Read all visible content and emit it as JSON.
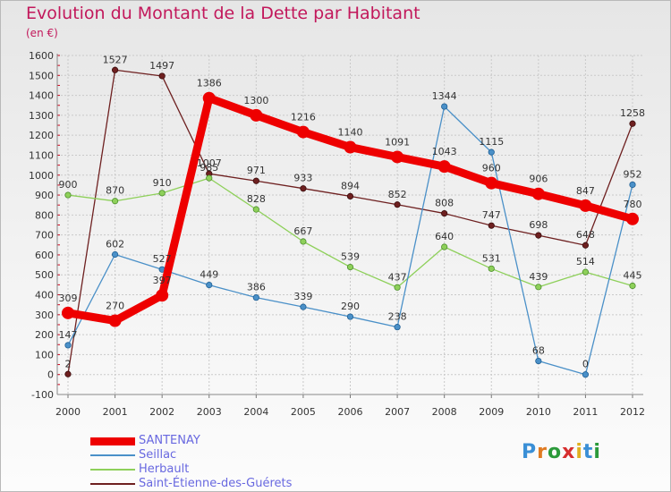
{
  "title": "Evolution du Montant de la Dette par Habitant",
  "subtitle": "(en €)",
  "logo": "Proxiti",
  "chart_data": {
    "type": "line",
    "x": [
      "2000",
      "2001",
      "2002",
      "2003",
      "2004",
      "2005",
      "2006",
      "2007",
      "2008",
      "2009",
      "2010",
      "2011",
      "2012"
    ],
    "ylim": [
      -100,
      1600
    ],
    "yticks": [
      -100,
      0,
      100,
      200,
      300,
      400,
      500,
      600,
      700,
      800,
      900,
      1000,
      1100,
      1200,
      1300,
      1400,
      1500,
      1600
    ],
    "grid": true,
    "legend_position": "bottom-left",
    "series": [
      {
        "name": "SANTENAY",
        "color": "#ee0000",
        "values": [
          309,
          270,
          397,
          1386,
          1300,
          1216,
          1140,
          1091,
          1043,
          960,
          906,
          847,
          780
        ],
        "labels": [
          "309",
          "270",
          "397",
          "1386",
          "1300",
          "1216",
          "1140",
          "1091",
          "1043",
          "960",
          "906",
          "847",
          "780"
        ]
      },
      {
        "name": "Seillac",
        "color": "#4a90c8",
        "values": [
          147,
          602,
          527,
          449,
          386,
          339,
          290,
          238,
          1344,
          1115,
          68,
          0,
          952
        ],
        "labels": [
          "147",
          "602",
          "527",
          "449",
          "386",
          "339",
          "290",
          "238",
          "1344",
          "1115",
          "68",
          "0",
          "952"
        ]
      },
      {
        "name": "Herbault",
        "color": "#8ed05a",
        "values": [
          900,
          870,
          910,
          985,
          828,
          667,
          539,
          437,
          640,
          531,
          439,
          514,
          445
        ],
        "labels": [
          "900",
          "870",
          "910",
          "985",
          "828",
          "667",
          "539",
          "437",
          "640",
          "531",
          "439",
          "514",
          "445"
        ]
      },
      {
        "name": "Saint-Étienne-des-Guérets",
        "color": "#6e2020",
        "values": [
          2,
          1527,
          1497,
          1007,
          971,
          933,
          894,
          852,
          808,
          747,
          698,
          648,
          1258
        ],
        "labels": [
          "2",
          "1527",
          "1497",
          "1007",
          "971",
          "933",
          "894",
          "852",
          "808",
          "747",
          "698",
          "648",
          "1258"
        ]
      }
    ]
  }
}
